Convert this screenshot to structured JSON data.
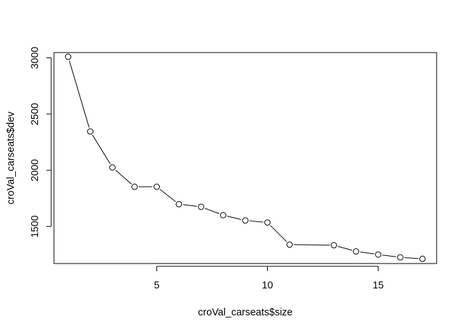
{
  "chart_data": {
    "type": "line",
    "title": "",
    "xlabel": "croVal_carseats$size",
    "ylabel": "croVal_carseats$dev",
    "xlim": [
      0.36,
      17.64
    ],
    "ylim": [
      1170,
      3047
    ],
    "x_ticks": [
      5,
      10,
      15
    ],
    "y_ticks": [
      1500,
      2000,
      2500,
      3000
    ],
    "grid": false,
    "legend": "none",
    "series": [
      {
        "x": [
          1,
          2,
          3,
          4,
          5,
          6,
          7,
          8,
          9,
          10,
          11,
          13,
          14,
          15,
          16,
          17
        ],
        "values": [
          3010,
          2345,
          2025,
          1853,
          1853,
          1698,
          1675,
          1600,
          1553,
          1535,
          1338,
          1333,
          1278,
          1250,
          1225,
          1212
        ]
      }
    ],
    "marker": "open-circle",
    "line_color": "#000000"
  }
}
